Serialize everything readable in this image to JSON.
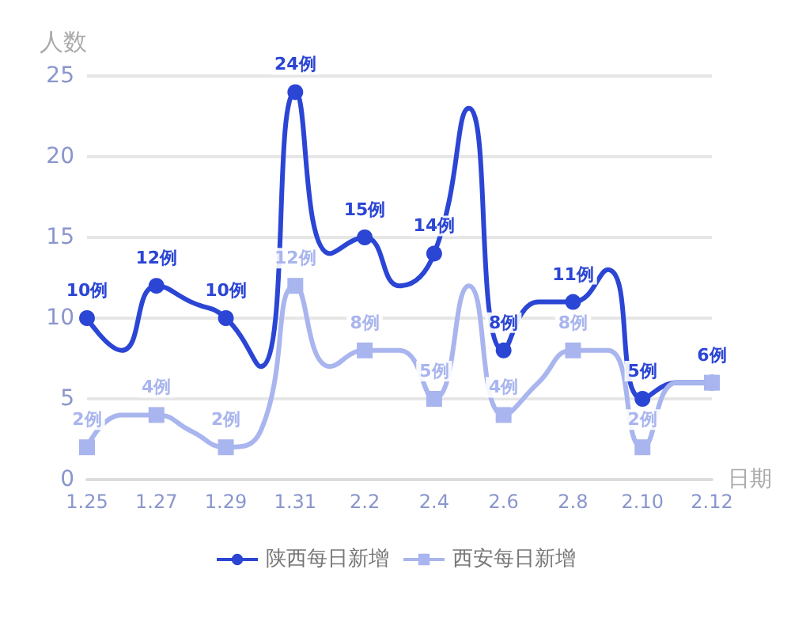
{
  "chart_data": {
    "type": "line",
    "ylabel": "人数",
    "xlabel": "日期",
    "categories": [
      "1.25",
      null,
      "1.27",
      null,
      "1.29",
      null,
      "1.31",
      null,
      "2.2",
      null,
      "2.4",
      null,
      "2.6",
      null,
      "2.8",
      null,
      "2.10",
      null,
      "2.12"
    ],
    "ylim": [
      0,
      25
    ],
    "yticks": [
      0,
      5,
      10,
      15,
      20,
      25
    ],
    "grid": "y",
    "legend": "bottom",
    "series": [
      {
        "name": "陕西每日新增",
        "color": "#2b45d4",
        "marker": "circle",
        "values": [
          10,
          8,
          12,
          11,
          10,
          7,
          24,
          14,
          15,
          12,
          14,
          23,
          8,
          11,
          11,
          13,
          5,
          6,
          6
        ],
        "value_labels": [
          "10例",
          null,
          "12例",
          null,
          "10例",
          null,
          "24例",
          null,
          "15例",
          null,
          "14例",
          null,
          "8例",
          null,
          "11例",
          null,
          "5例",
          null,
          "6例"
        ]
      },
      {
        "name": "西安每日新增",
        "color": "#a9b5ee",
        "marker": "square",
        "values": [
          2,
          4,
          4,
          3,
          2,
          3,
          12,
          7,
          8,
          8,
          5,
          12,
          4,
          6,
          8,
          8,
          2,
          6,
          6
        ],
        "value_labels": [
          "2例",
          null,
          "4例",
          null,
          "2例",
          null,
          "12例",
          null,
          "8例",
          null,
          "5例",
          null,
          "4例",
          null,
          "8例",
          null,
          "2例",
          null,
          null
        ]
      }
    ]
  }
}
